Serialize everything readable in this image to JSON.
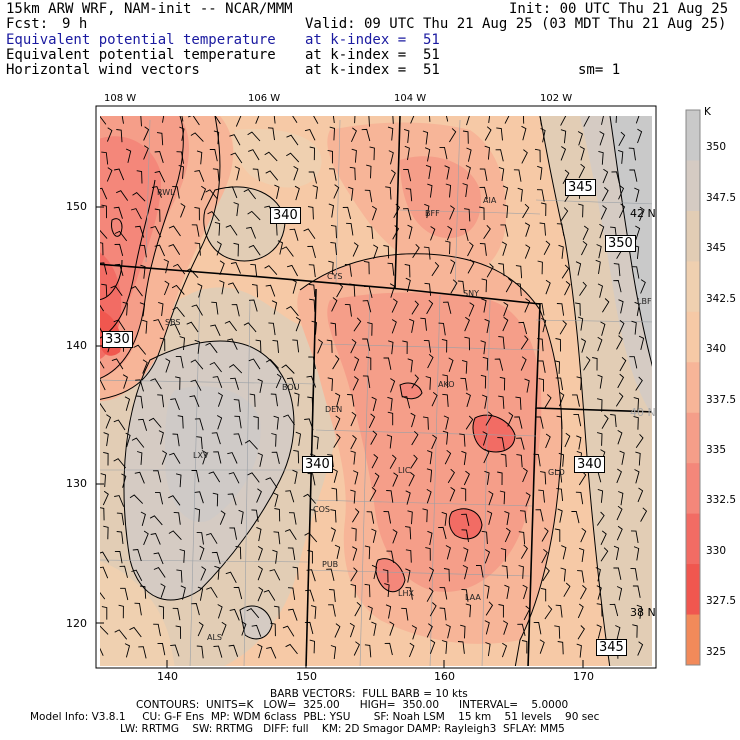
{
  "header": {
    "model": "15km ARW WRF, NAM-init -- NCAR/MMM",
    "init": "Init: 00 UTC Thu 21 Aug 25",
    "fcst_label": "Fcst:",
    "fcst_value": "9 h",
    "valid": "Valid: 09 UTC Thu 21 Aug 25 (03 MDT Thu 21 Aug 25)",
    "fields": [
      {
        "name": "Equivalent potential temperature",
        "level": "at k-index =  51",
        "color": "#1a1aa0"
      },
      {
        "name": "Equivalent potential temperature",
        "level": "at k-index =  51",
        "color": "#000000"
      },
      {
        "name": "Horizontal wind vectors",
        "level": "at k-index =  51",
        "color": "#000000"
      }
    ],
    "smoothing": "sm= 1"
  },
  "top_axis": [
    "108 W",
    "106 W",
    "104 W",
    "102 W"
  ],
  "left_axis": [
    "150",
    "140",
    "130",
    "120"
  ],
  "bottom_axis": [
    "140",
    "150",
    "160",
    "170"
  ],
  "lat_labels": [
    {
      "text": "42 N",
      "color": "#000000"
    },
    {
      "text": "40 N",
      "color": "#aaaaaa"
    },
    {
      "text": "38 N",
      "color": "#000000"
    }
  ],
  "cities": [
    "RWL",
    "BFF",
    "AIA",
    "CYS",
    "SNY",
    "SBS",
    "BOU",
    "DEN",
    "AKO",
    "LXV",
    "LIC",
    "GLD",
    "COS",
    "PUB",
    "LHX",
    "LAA",
    "ALS",
    "LBF"
  ],
  "contour_labels": [
    "345",
    "340",
    "350",
    "330",
    "340",
    "340",
    "345"
  ],
  "colorbar": {
    "unit": "K",
    "levels": [
      "350",
      "347.5",
      "345",
      "342.5",
      "340",
      "337.5",
      "335",
      "332.5",
      "330",
      "327.5",
      "325"
    ],
    "colors": [
      "#c9c9c9",
      "#d5cbc3",
      "#e2cdb5",
      "#efd0b0",
      "#f6c9a6",
      "#f7b598",
      "#f59e89",
      "#f4877a",
      "#f26c64",
      "#f0574f",
      "#f28a5a"
    ]
  },
  "footer": {
    "barb": "BARB VECTORS:  FULL BARB = 10 kts",
    "contours": "CONTOURS:  UNITS=K   LOW=  325.00      HIGH=  350.00      INTERVAL=    5.0000",
    "model_info": "Model Info: V3.8.1     CU: G-F Ens  MP: WDM 6class  PBL: YSU       SF: Noah LSM    15 km    51 levels    90 sec",
    "physics": "LW: RRTMG    SW: RRTMG   DIFF: full    KM: 2D Smagor DAMP: Rayleigh3  SFLAY: MM5"
  }
}
